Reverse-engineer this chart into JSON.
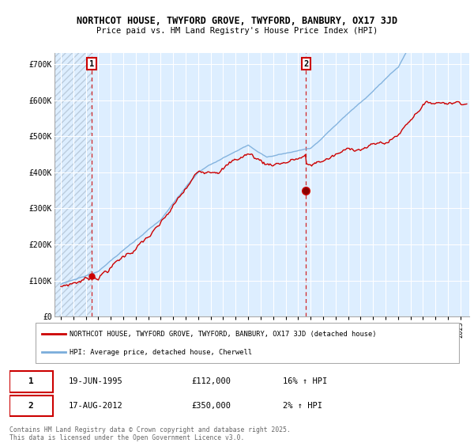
{
  "title1": "NORTHCOT HOUSE, TWYFORD GROVE, TWYFORD, BANBURY, OX17 3JD",
  "title2": "Price paid vs. HM Land Registry's House Price Index (HPI)",
  "legend_line1": "NORTHCOT HOUSE, TWYFORD GROVE, TWYFORD, BANBURY, OX17 3JD (detached house)",
  "legend_line2": "HPI: Average price, detached house, Cherwell",
  "footer": "Contains HM Land Registry data © Crown copyright and database right 2025.\nThis data is licensed under the Open Government Licence v3.0.",
  "marker1_date": "19-JUN-1995",
  "marker1_price": "£112,000",
  "marker1_hpi": "16% ↑ HPI",
  "marker2_date": "17-AUG-2012",
  "marker2_price": "£350,000",
  "marker2_hpi": "2% ↑ HPI",
  "red_color": "#cc0000",
  "blue_color": "#7aaddb",
  "bg_color": "#ddeeff",
  "hatch_color": "#bbccdd",
  "marker1_x": 1995.47,
  "marker2_x": 2012.63,
  "sale1_price": 112000,
  "sale2_price": 350000,
  "ylim_min": 0,
  "ylim_max": 730000,
  "xlim_min": 1992.5,
  "xlim_max": 2025.7
}
